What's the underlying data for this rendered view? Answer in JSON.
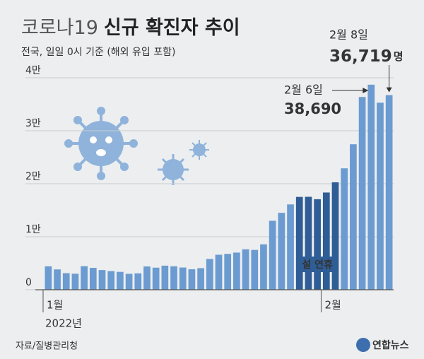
{
  "chart_data": {
    "type": "bar",
    "title": {
      "light": "코로나19",
      "bold": "신규 확진자 추이"
    },
    "subtitle": "전국, 일일 0시 기준 (해외 유입 포함)",
    "categories": [
      "1월",
      null,
      null,
      null,
      null,
      null,
      null,
      null,
      null,
      null,
      null,
      null,
      null,
      null,
      null,
      null,
      null,
      null,
      null,
      null,
      null,
      null,
      null,
      null,
      null,
      null,
      null,
      null,
      null,
      null,
      null,
      "2월",
      null,
      null,
      null,
      null,
      null,
      null,
      null
    ],
    "year": "2022년",
    "values": [
      4415,
      3833,
      3129,
      3024,
      4444,
      4126,
      3713,
      3511,
      3376,
      3005,
      3094,
      4388,
      4167,
      4542,
      4423,
      4194,
      3859,
      4071,
      5805,
      6603,
      6769,
      7009,
      7630,
      7513,
      8571,
      13012,
      14518,
      16096,
      17513,
      17532,
      17079,
      18342,
      20270,
      22907,
      27443,
      36362,
      38690,
      35286,
      36719
    ],
    "value_labels": [
      null,
      null,
      null,
      null,
      null,
      null,
      null,
      null,
      null,
      null,
      null,
      null,
      null,
      null,
      null,
      null,
      null,
      null,
      null,
      null,
      null,
      null,
      null,
      null,
      null,
      null,
      null,
      null,
      null,
      null,
      null,
      null,
      null,
      null,
      null,
      null,
      "38,690",
      null,
      "36,719"
    ],
    "value_dates": [
      null,
      null,
      null,
      null,
      null,
      null,
      null,
      null,
      null,
      null,
      null,
      null,
      null,
      null,
      null,
      null,
      null,
      null,
      null,
      null,
      null,
      null,
      null,
      null,
      null,
      null,
      null,
      null,
      null,
      null,
      null,
      null,
      null,
      null,
      null,
      null,
      "2월 6일",
      null,
      "2월 8일"
    ],
    "unit": "명",
    "color": "#6b9bd0",
    "highlight": {
      "label": "설 연휴",
      "from": 28,
      "to": 32,
      "color": "#2f5d96"
    },
    "ylim": [
      0,
      44000
    ],
    "yticks": [
      0,
      {
        "value": 10000,
        "label": "1만"
      },
      {
        "value": 20000,
        "label": "2만"
      },
      {
        "value": 30000,
        "label": "3만"
      },
      {
        "value": 40000,
        "label": "4만"
      }
    ],
    "grid": true,
    "source": "자료/질병관리청",
    "logo": "연합뉴스"
  }
}
